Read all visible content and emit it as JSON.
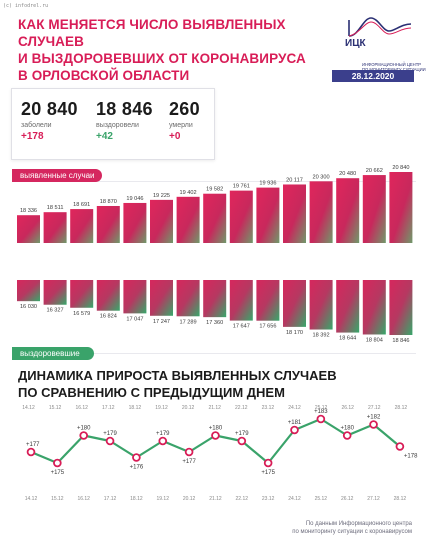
{
  "source": "(c) infodrel.ru",
  "title_lines": [
    "КАК МЕНЯЕТСЯ ЧИСЛО ВЫЯВЛЕННЫХ СЛУЧАЕВ",
    "И ВЫЗДОРОВЕВШИХ ОТ КОРОНАВИРУСА",
    "В ОРЛОВСКОЙ ОБЛАСТИ"
  ],
  "logo": {
    "name": "ИЦК",
    "subtitle": "ИНФОРМАЦИОННЫЙ ЦЕНТР ПО МОНИТОРИНГУ СИТУАЦИИ С КОРОНАВИРУСОМ"
  },
  "date": "28.12.2020",
  "stats": [
    {
      "value": "20 840",
      "label": "заболели",
      "delta": "+178",
      "delta_color": "#d81d57"
    },
    {
      "value": "18 846",
      "label": "выздоровели",
      "delta": "+42",
      "delta_color": "#3aa36a"
    },
    {
      "value": "260",
      "label": "умерли",
      "delta": "+0",
      "delta_color": "#d81d57"
    }
  ],
  "labels": {
    "cases": "выявленные случаи",
    "recovered": "выздоровевшие"
  },
  "colors": {
    "accent": "#d81d57",
    "green": "#3aa36a",
    "navy": "#3b3f8c"
  },
  "dynamics_title_lines": [
    "ДИНАМИКА ПРИРОСТА ВЫЯВЛЕННЫХ СЛУЧАЕВ",
    "ПО СРАВНЕНИЮ С ПРЕДЫДУЩИМ ДНЕМ"
  ],
  "footer_lines": [
    "По данным Информационного центра",
    "по мониторингу ситуации с коронавирусом"
  ],
  "chart_data": [
    {
      "type": "bar",
      "categories": [
        "14.12",
        "15.12",
        "16.12",
        "17.12",
        "18.12",
        "19.12",
        "20.12",
        "21.12",
        "22.12",
        "23.12",
        "24.12",
        "25.12",
        "26.12",
        "27.12",
        "28.12"
      ],
      "series": [
        {
          "name": "выявленные случаи",
          "values": [
            18336,
            18511,
            18691,
            18870,
            19046,
            19225,
            19402,
            19582,
            19761,
            19936,
            20117,
            20300,
            20480,
            20662,
            20840
          ]
        }
      ],
      "value_labels": [
        "18 336",
        "18 511",
        "18 691",
        "18 870",
        "19 046",
        "19 225",
        "19 402",
        "19 582",
        "19 761",
        "19 936",
        "20 117",
        "20 300",
        "20 480",
        "20 662",
        "20 840"
      ]
    },
    {
      "type": "bar",
      "categories": [
        "14.12",
        "15.12",
        "16.12",
        "17.12",
        "18.12",
        "19.12",
        "20.12",
        "21.12",
        "22.12",
        "23.12",
        "24.12",
        "25.12",
        "26.12",
        "27.12",
        "28.12"
      ],
      "series": [
        {
          "name": "выздоровевшие",
          "values": [
            16030,
            16327,
            16579,
            16824,
            17047,
            17247,
            17289,
            17360,
            17647,
            17656,
            18170,
            18392,
            18644,
            18804,
            18846
          ]
        }
      ],
      "value_labels": [
        "16 030",
        "16 327",
        "16 579",
        "16 824",
        "17 047",
        "17 247",
        "17 289",
        "17 360",
        "17 647",
        "17 656",
        "18 170",
        "18 392",
        "18 644",
        "18 804",
        "18 846"
      ]
    },
    {
      "type": "line",
      "title": "ДИНАМИКА ПРИРОСТА ВЫЯВЛЕННЫХ СЛУЧАЕВ ПО СРАВНЕНИЮ С ПРЕДЫДУЩИМ ДНЕМ",
      "x": [
        "14.12",
        "15.12",
        "16.12",
        "17.12",
        "18.12",
        "19.12",
        "20.12",
        "21.12",
        "22.12",
        "23.12",
        "24.12",
        "25.12",
        "26.12",
        "27.12",
        "28.12"
      ],
      "series": [
        {
          "values": [
            177,
            175,
            180,
            179,
            176,
            179,
            177,
            180,
            179,
            175,
            181,
            183,
            180,
            182,
            178
          ]
        }
      ],
      "value_labels": [
        "+177",
        "+175",
        "+180",
        "+179",
        "+176",
        "+179",
        "+177",
        "+180",
        "+179",
        "+175",
        "+181",
        "+183",
        "+180",
        "+182",
        "+178"
      ]
    }
  ]
}
